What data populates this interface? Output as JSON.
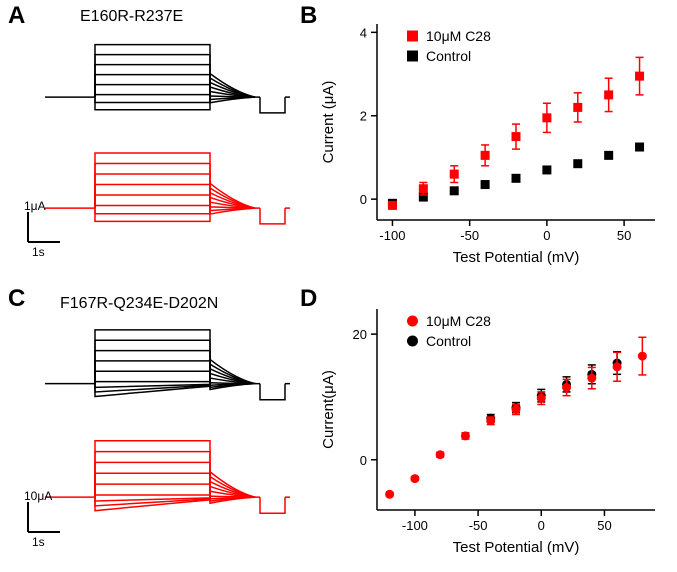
{
  "colors": {
    "control": "#000000",
    "treated": "#ff0000",
    "axis": "#000000",
    "bg": "#ffffff"
  },
  "panelA": {
    "label": "A",
    "mutant": "E160R-R237E",
    "scaleY": "1μA",
    "scaleX": "1s",
    "n_traces": 8,
    "trace_color_top": "#000000",
    "trace_color_bottom": "#ff0000",
    "linewidth": 1.5
  },
  "panelB": {
    "label": "B",
    "type": "scatter",
    "xlabel": "Test Potential (mV)",
    "ylabel": "Current (μA)",
    "xlim": [
      -110,
      70
    ],
    "ylim": [
      -0.5,
      4.2
    ],
    "xticks": [
      -100,
      -50,
      0,
      50
    ],
    "yticks": [
      0,
      2,
      4
    ],
    "legend": {
      "treated": "10μM C28",
      "control": "Control"
    },
    "marker_shape": "square",
    "marker_size": 9,
    "series_treated": {
      "color": "#ff0000",
      "x": [
        -100,
        -80,
        -60,
        -40,
        -20,
        0,
        20,
        40,
        60
      ],
      "y": [
        -0.15,
        0.25,
        0.6,
        1.05,
        1.5,
        1.95,
        2.2,
        2.5,
        2.95
      ],
      "err": [
        0.05,
        0.15,
        0.2,
        0.25,
        0.3,
        0.35,
        0.35,
        0.4,
        0.45
      ]
    },
    "series_control": {
      "color": "#000000",
      "x": [
        -100,
        -80,
        -60,
        -40,
        -20,
        0,
        20,
        40,
        60
      ],
      "y": [
        -0.1,
        0.05,
        0.2,
        0.35,
        0.5,
        0.7,
        0.85,
        1.05,
        1.25
      ],
      "err": [
        0.03,
        0.03,
        0.04,
        0.04,
        0.05,
        0.05,
        0.06,
        0.06,
        0.07
      ]
    },
    "label_fontsize": 15,
    "tick_fontsize": 13
  },
  "panelC": {
    "label": "C",
    "mutant": "F167R-Q234E-D202N",
    "scaleY": "10μA",
    "scaleX": "1s",
    "n_traces": 9,
    "trace_color_top": "#000000",
    "trace_color_bottom": "#ff0000",
    "linewidth": 1.5
  },
  "panelD": {
    "label": "D",
    "type": "scatter",
    "xlabel": "Test Potential (mV)",
    "ylabel": "Current(μA)",
    "xlim": [
      -130,
      90
    ],
    "ylim": [
      -8,
      24
    ],
    "xticks": [
      -100,
      -50,
      0,
      50
    ],
    "yticks": [
      0,
      20
    ],
    "legend": {
      "treated": "10μM C28",
      "control": "Control"
    },
    "marker_shape": "circle",
    "marker_size": 9,
    "series_treated": {
      "color": "#ff0000",
      "x": [
        -120,
        -100,
        -80,
        -60,
        -40,
        -20,
        0,
        20,
        40,
        60,
        80
      ],
      "y": [
        -5.5,
        -3.0,
        0.8,
        3.8,
        6.2,
        8.0,
        9.8,
        11.5,
        13.0,
        14.8,
        16.5
      ],
      "err": [
        0.3,
        0.3,
        0.4,
        0.5,
        0.6,
        0.8,
        1.0,
        1.3,
        1.7,
        2.3,
        3.0
      ]
    },
    "series_control": {
      "color": "#000000",
      "x": [
        -40,
        -20,
        0,
        20,
        40,
        60
      ],
      "y": [
        6.6,
        8.3,
        10.2,
        12.0,
        13.6,
        15.4
      ],
      "err": [
        0.6,
        0.8,
        1.0,
        1.2,
        1.5,
        1.8
      ]
    },
    "label_fontsize": 15,
    "tick_fontsize": 13
  }
}
